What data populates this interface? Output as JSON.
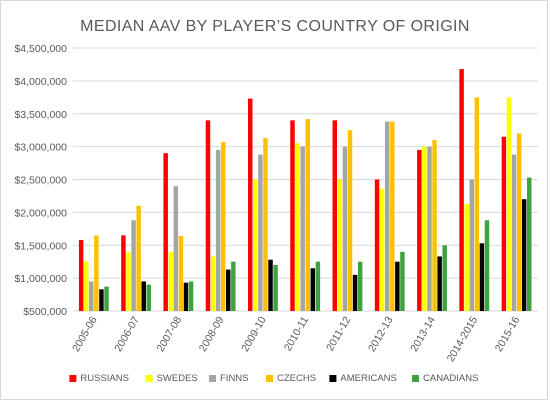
{
  "chart_data": {
    "type": "bar",
    "title": "MEDIAN AAV BY PLAYER’S COUNTRY OF ORIGIN",
    "xlabel": "",
    "ylabel": "",
    "categories": [
      "2005-06",
      "2006-07",
      "2007-08",
      "2008-09",
      "2009-10",
      "2010-11",
      "2011-12",
      "2012-13",
      "2013-14",
      "2014-2015",
      "2015-16"
    ],
    "ylim": [
      500000,
      4500000
    ],
    "yticks": [
      500000,
      1000000,
      1500000,
      2000000,
      2500000,
      3000000,
      3500000,
      4000000,
      4500000
    ],
    "ytick_labels": [
      "$500,000",
      "$1,000,000",
      "$1,500,000",
      "$2,000,000",
      "$2,500,000",
      "$3,000,000",
      "$3,500,000",
      "$4,000,000",
      "$4,500,000"
    ],
    "grid": true,
    "legend_position": "bottom",
    "series": [
      {
        "name": "RUSSIANS",
        "color": "#ff0000",
        "values": [
          1580000,
          1650000,
          2900000,
          3400000,
          3730000,
          3400000,
          3400000,
          2500000,
          2950000,
          4180000,
          3150000
        ]
      },
      {
        "name": "SWEDES",
        "color": "#ffff00",
        "values": [
          1250000,
          1400000,
          1400000,
          1330000,
          2500000,
          3050000,
          2500000,
          2360000,
          3000000,
          2130000,
          3750000
        ]
      },
      {
        "name": "FINNS",
        "color": "#a5a5a5",
        "values": [
          950000,
          1880000,
          2400000,
          2950000,
          2880000,
          3000000,
          3000000,
          3380000,
          3000000,
          2500000,
          2880000
        ]
      },
      {
        "name": "CZECHS",
        "color": "#ffc000",
        "values": [
          1650000,
          2100000,
          1640000,
          3070000,
          3130000,
          3420000,
          3250000,
          3380000,
          3100000,
          3750000,
          3200000
        ]
      },
      {
        "name": "AMERICANS",
        "color": "#000000",
        "values": [
          830000,
          950000,
          930000,
          1130000,
          1280000,
          1150000,
          1050000,
          1250000,
          1330000,
          1530000,
          2200000
        ]
      },
      {
        "name": "CANADIANS",
        "color": "#3ea33e",
        "values": [
          870000,
          900000,
          950000,
          1250000,
          1200000,
          1250000,
          1250000,
          1400000,
          1500000,
          1880000,
          2530000
        ]
      }
    ]
  }
}
